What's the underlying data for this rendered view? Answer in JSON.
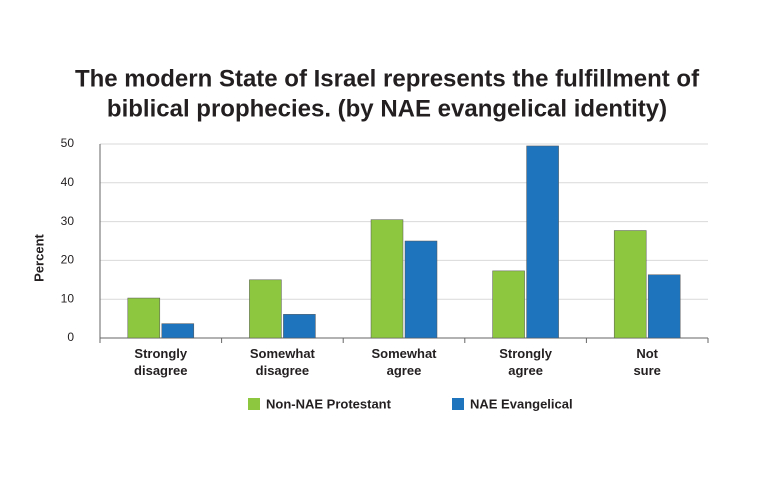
{
  "chart_data": {
    "type": "bar",
    "title": [
      "The modern State of Israel represents the fulfillment of",
      "biblical prophecies.  (by NAE evangelical identity)"
    ],
    "y_label": "Percent",
    "categories": [
      "Strongly\ndisagree",
      "Somewhat\ndisagree",
      "Somewhat\nagree",
      "Strongly\nagree",
      "Not\nsure"
    ],
    "series": [
      {
        "name": "Non-NAE Protestant",
        "color": "#8dc63f",
        "values": [
          10.3,
          15,
          30.5,
          17.3,
          27.7
        ]
      },
      {
        "name": "NAE Evangelical",
        "color": "#1f75bd",
        "values": [
          3.7,
          6.1,
          25,
          49.5,
          16.3
        ]
      }
    ],
    "ylim": [
      0,
      50
    ],
    "yticks": [
      0,
      10,
      20,
      30,
      40,
      50
    ],
    "grid": true
  }
}
